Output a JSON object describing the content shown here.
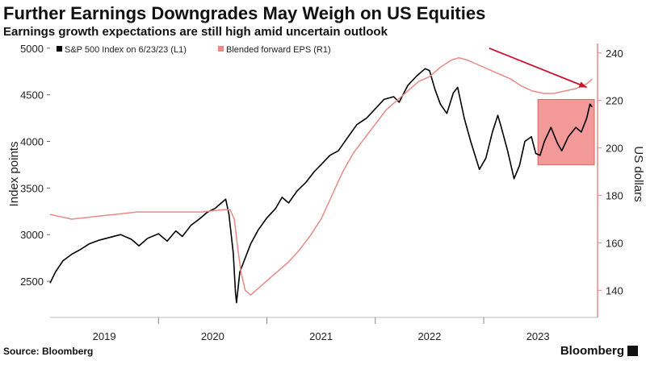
{
  "header": {
    "title": "Further Earnings Downgrades May Weigh on US Equities",
    "subtitle": "Earnings growth expectations are still high amid uncertain outlook"
  },
  "footer": {
    "source": "Source: Bloomberg",
    "brand": "Bloomberg"
  },
  "colors": {
    "sp500": "#000000",
    "eps": "#e88a86",
    "highlight": "#f08080",
    "arrow": "#cc1133"
  },
  "chart_data": {
    "type": "line",
    "title": "Further Earnings Downgrades May Weigh on US Equities",
    "subtitle": "Earnings growth expectations are still high amid uncertain outlook",
    "xlabel": "",
    "ylabel_left": "Index points",
    "ylabel_right": "US dollars",
    "ylim_left": [
      2250,
      5050
    ],
    "ylim_right": [
      134,
      244
    ],
    "yticks_left": [
      2500,
      3000,
      3500,
      4000,
      4500,
      5000
    ],
    "yticks_right": [
      140,
      160,
      180,
      200,
      220,
      240
    ],
    "xlim": [
      2018.5,
      2023.55
    ],
    "xticks": [
      {
        "label": "2019",
        "x": 2019.0
      },
      {
        "label": "2020",
        "x": 2020.0
      },
      {
        "label": "2021",
        "x": 2021.0
      },
      {
        "label": "2022",
        "x": 2022.0
      },
      {
        "label": "2023",
        "x": 2023.0
      }
    ],
    "legend": [
      "S&P 500 Index on 6/23/23 (L1)",
      "Blended forward EPS (R1)"
    ],
    "series": [
      {
        "name": "S&P 500 Index on 6/23/23 (L1)",
        "axis": "left",
        "points": [
          [
            2018.5,
            2480
          ],
          [
            2018.55,
            2600
          ],
          [
            2018.62,
            2720
          ],
          [
            2018.7,
            2790
          ],
          [
            2018.78,
            2840
          ],
          [
            2018.86,
            2900
          ],
          [
            2018.95,
            2940
          ],
          [
            2019.05,
            2970
          ],
          [
            2019.15,
            3000
          ],
          [
            2019.25,
            2950
          ],
          [
            2019.32,
            2880
          ],
          [
            2019.4,
            2960
          ],
          [
            2019.5,
            3010
          ],
          [
            2019.58,
            2930
          ],
          [
            2019.66,
            3040
          ],
          [
            2019.72,
            2980
          ],
          [
            2019.8,
            3100
          ],
          [
            2019.88,
            3170
          ],
          [
            2019.95,
            3240
          ],
          [
            2020.02,
            3280
          ],
          [
            2020.08,
            3340
          ],
          [
            2020.12,
            3380
          ],
          [
            2020.15,
            3220
          ],
          [
            2020.19,
            2800
          ],
          [
            2020.21,
            2380
          ],
          [
            2020.22,
            2270
          ],
          [
            2020.25,
            2600
          ],
          [
            2020.3,
            2750
          ],
          [
            2020.35,
            2900
          ],
          [
            2020.42,
            3050
          ],
          [
            2020.5,
            3180
          ],
          [
            2020.58,
            3280
          ],
          [
            2020.64,
            3400
          ],
          [
            2020.7,
            3340
          ],
          [
            2020.78,
            3470
          ],
          [
            2020.86,
            3560
          ],
          [
            2020.94,
            3680
          ],
          [
            2021.0,
            3750
          ],
          [
            2021.08,
            3850
          ],
          [
            2021.16,
            3900
          ],
          [
            2021.25,
            4050
          ],
          [
            2021.33,
            4180
          ],
          [
            2021.42,
            4250
          ],
          [
            2021.5,
            4350
          ],
          [
            2021.58,
            4450
          ],
          [
            2021.67,
            4480
          ],
          [
            2021.72,
            4420
          ],
          [
            2021.8,
            4600
          ],
          [
            2021.88,
            4700
          ],
          [
            2021.96,
            4780
          ],
          [
            2022.0,
            4760
          ],
          [
            2022.05,
            4560
          ],
          [
            2022.1,
            4400
          ],
          [
            2022.16,
            4300
          ],
          [
            2022.22,
            4520
          ],
          [
            2022.26,
            4580
          ],
          [
            2022.32,
            4250
          ],
          [
            2022.38,
            4000
          ],
          [
            2022.42,
            3850
          ],
          [
            2022.46,
            3700
          ],
          [
            2022.52,
            3820
          ],
          [
            2022.58,
            4100
          ],
          [
            2022.63,
            4280
          ],
          [
            2022.66,
            4160
          ],
          [
            2022.72,
            3900
          ],
          [
            2022.78,
            3600
          ],
          [
            2022.83,
            3740
          ],
          [
            2022.88,
            4000
          ],
          [
            2022.94,
            4050
          ],
          [
            2022.98,
            3870
          ],
          [
            2023.02,
            3850
          ],
          [
            2023.06,
            4000
          ],
          [
            2023.12,
            4150
          ],
          [
            2023.18,
            3980
          ],
          [
            2023.22,
            3900
          ],
          [
            2023.28,
            4050
          ],
          [
            2023.35,
            4150
          ],
          [
            2023.4,
            4100
          ],
          [
            2023.45,
            4250
          ],
          [
            2023.48,
            4400
          ],
          [
            2023.5,
            4370
          ]
        ]
      },
      {
        "name": "Blended forward EPS (R1)",
        "axis": "right",
        "points": [
          [
            2018.5,
            172
          ],
          [
            2018.7,
            170
          ],
          [
            2018.9,
            171
          ],
          [
            2019.1,
            172
          ],
          [
            2019.3,
            173
          ],
          [
            2019.5,
            173
          ],
          [
            2019.7,
            173
          ],
          [
            2019.9,
            173
          ],
          [
            2020.1,
            174
          ],
          [
            2020.16,
            174
          ],
          [
            2020.2,
            170
          ],
          [
            2020.23,
            158
          ],
          [
            2020.26,
            148
          ],
          [
            2020.3,
            140
          ],
          [
            2020.35,
            138
          ],
          [
            2020.4,
            140
          ],
          [
            2020.5,
            144
          ],
          [
            2020.6,
            148
          ],
          [
            2020.7,
            152
          ],
          [
            2020.8,
            157
          ],
          [
            2020.9,
            163
          ],
          [
            2021.0,
            170
          ],
          [
            2021.1,
            180
          ],
          [
            2021.2,
            190
          ],
          [
            2021.3,
            198
          ],
          [
            2021.4,
            204
          ],
          [
            2021.5,
            210
          ],
          [
            2021.6,
            216
          ],
          [
            2021.7,
            220
          ],
          [
            2021.8,
            224
          ],
          [
            2021.9,
            228
          ],
          [
            2022.0,
            230
          ],
          [
            2022.1,
            234
          ],
          [
            2022.2,
            237
          ],
          [
            2022.27,
            238
          ],
          [
            2022.35,
            237
          ],
          [
            2022.45,
            235
          ],
          [
            2022.55,
            233
          ],
          [
            2022.65,
            231
          ],
          [
            2022.75,
            229
          ],
          [
            2022.85,
            226
          ],
          [
            2022.95,
            224
          ],
          [
            2023.05,
            223
          ],
          [
            2023.15,
            223
          ],
          [
            2023.25,
            224
          ],
          [
            2023.35,
            225
          ],
          [
            2023.45,
            227
          ],
          [
            2023.5,
            229
          ]
        ]
      }
    ],
    "annotations": [
      {
        "type": "shaded_box",
        "x": [
          2023.0,
          2023.52
        ],
        "y_left": [
          3750,
          4450
        ]
      },
      {
        "type": "arrow",
        "from": [
          2022.55,
          5000
        ],
        "to": [
          2023.45,
          4580
        ],
        "note": "arrow pointing to EPS line"
      }
    ]
  }
}
